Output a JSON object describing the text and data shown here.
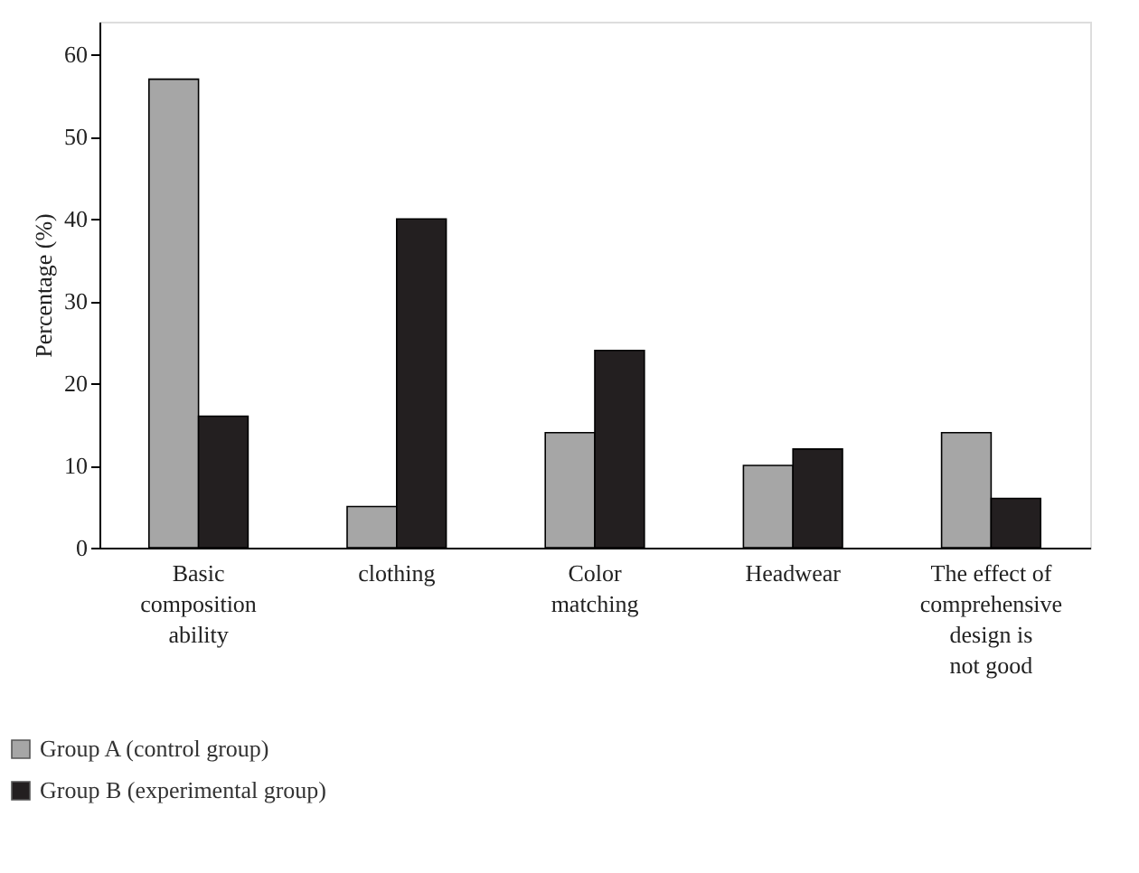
{
  "chart_data": {
    "type": "bar",
    "ylabel": "Percentage (%)",
    "categories": [
      "Basic\ncomposition\nability",
      "clothing",
      "Color\nmatching",
      "Headwear",
      "The effect of\ncomprehensive\ndesign is\nnot good"
    ],
    "series": [
      {
        "name": "Group A (control group)",
        "color": "#a6a6a6",
        "values": [
          57,
          5,
          14,
          10,
          14
        ]
      },
      {
        "name": "Group B (experimental group)",
        "color": "#231f20",
        "values": [
          16,
          40,
          24,
          12,
          6
        ]
      }
    ],
    "ylim": [
      0,
      64
    ],
    "yticks": [
      0,
      10,
      20,
      30,
      40,
      50,
      60
    ],
    "grid": false,
    "legend": "bottom left"
  }
}
